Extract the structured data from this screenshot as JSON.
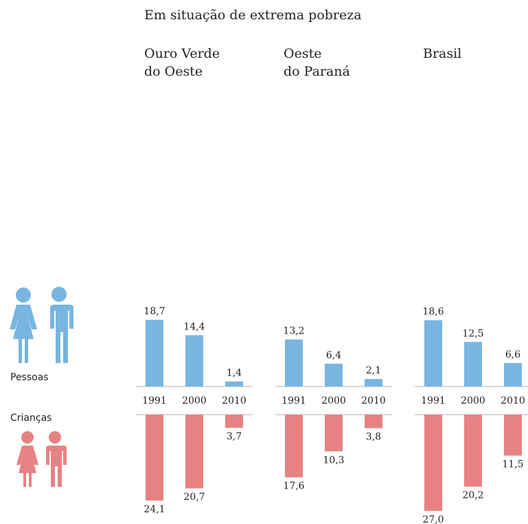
{
  "chart_data": {
    "type": "bar",
    "title": "Em situação de extrema pobreza",
    "series_names": [
      "Pessoas",
      "Crianças"
    ],
    "colors": [
      "#78b5e1",
      "#e88282"
    ],
    "panels": [
      {
        "title": [
          "Ouro Verde",
          "do Oeste"
        ],
        "categories": [
          "1991",
          "2000",
          "2010"
        ],
        "series": [
          {
            "name": "Pessoas",
            "values": [
              18.7,
              14.4,
              1.4
            ],
            "value_labels": [
              "18,7",
              "14,4",
              "1,4"
            ]
          },
          {
            "name": "Crianças",
            "values": [
              24.1,
              20.7,
              3.7
            ],
            "value_labels": [
              "24,1",
              "20,7",
              "3,7"
            ]
          }
        ]
      },
      {
        "title": [
          "Oeste",
          "do Paraná"
        ],
        "categories": [
          "1991",
          "2000",
          "2010"
        ],
        "series": [
          {
            "name": "Pessoas",
            "values": [
              13.2,
              6.4,
              2.1
            ],
            "value_labels": [
              "13,2",
              "6,4",
              "2,1"
            ]
          },
          {
            "name": "Crianças",
            "values": [
              17.6,
              10.3,
              3.8
            ],
            "value_labels": [
              "17,6",
              "10,3",
              "3,8"
            ]
          }
        ]
      },
      {
        "title": [
          "Brasil"
        ],
        "categories": [
          "1991",
          "2000",
          "2010"
        ],
        "series": [
          {
            "name": "Pessoas",
            "values": [
              18.6,
              12.5,
              6.6
            ],
            "value_labels": [
              "18,6",
              "12,5",
              "6,6"
            ]
          },
          {
            "name": "Crianças",
            "values": [
              27.0,
              20.2,
              11.5
            ],
            "value_labels": [
              "27,0",
              "20,2",
              "11,5"
            ]
          }
        ]
      }
    ]
  }
}
